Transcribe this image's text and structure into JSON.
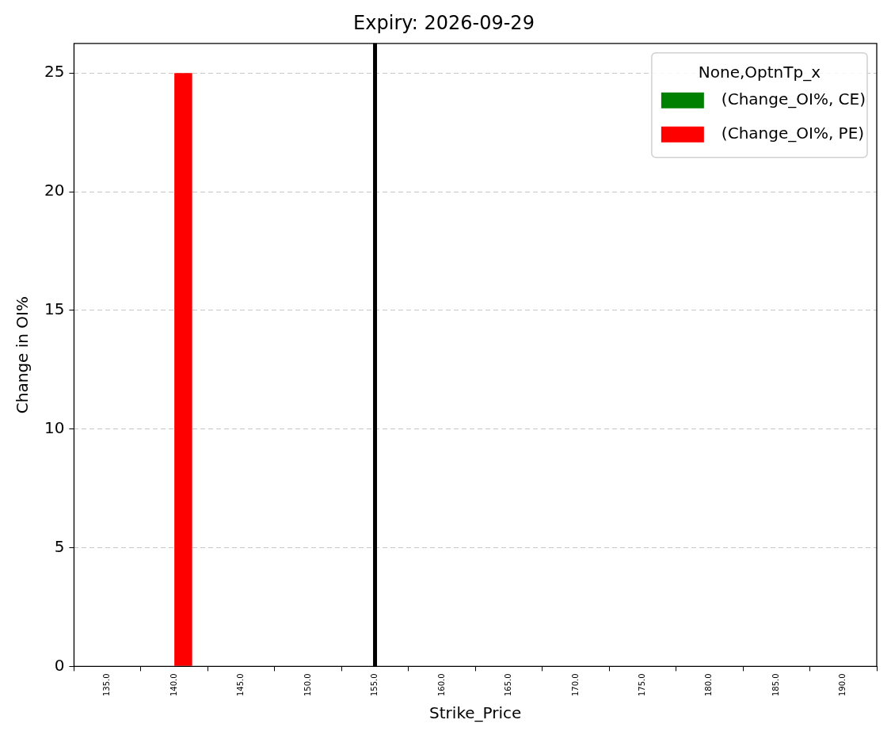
{
  "chart_data": {
    "type": "bar",
    "title": "Expiry: 2026-09-29",
    "xlabel": "Strike_Price",
    "ylabel": "Change in OI%",
    "legend_title": "None,OptnTp_x",
    "categories": [
      "135.0",
      "140.0",
      "145.0",
      "150.0",
      "155.0",
      "160.0",
      "165.0",
      "170.0",
      "175.0",
      "180.0",
      "185.0",
      "190.0"
    ],
    "series": [
      {
        "name": "(Change_OI%, CE)",
        "color": "#008000",
        "values": [
          0,
          0,
          0,
          0,
          0,
          0,
          0,
          0,
          0,
          0,
          0,
          0
        ]
      },
      {
        "name": "(Change_OI%, PE)",
        "color": "#ff0000",
        "values": [
          0,
          25,
          0,
          0,
          0,
          0,
          0,
          0,
          0,
          0,
          0,
          0
        ]
      }
    ],
    "ylim": [
      0,
      26.25
    ],
    "yticks": [
      0,
      5,
      10,
      15,
      20,
      25
    ],
    "grid": "y",
    "legend": "top right",
    "ref_lines": [
      {
        "axis": "x",
        "value": "155.0",
        "color": "#000000"
      }
    ]
  }
}
